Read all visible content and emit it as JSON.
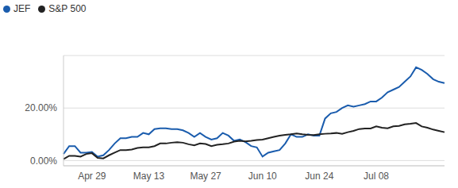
{
  "chart_data": {
    "type": "line",
    "categories": [
      null,
      null,
      null,
      null,
      null,
      "Apr 29",
      null,
      null,
      null,
      null,
      null,
      null,
      null,
      null,
      null,
      "May 13",
      null,
      null,
      null,
      null,
      null,
      null,
      null,
      null,
      null,
      "May 27",
      null,
      null,
      null,
      null,
      null,
      null,
      null,
      null,
      null,
      "Jun 10",
      null,
      null,
      null,
      null,
      null,
      null,
      null,
      null,
      null,
      "Jun 24",
      null,
      null,
      null,
      null,
      null,
      null,
      null,
      null,
      null,
      "Jul 08",
      null,
      null,
      null,
      null,
      null,
      null,
      null,
      null,
      null,
      null,
      null,
      null
    ],
    "series": [
      {
        "name": "JEF",
        "color": "#1a5cad",
        "values": [
          2.5,
          5.5,
          5.5,
          3,
          3,
          3.3,
          1.5,
          2,
          4,
          6.5,
          8.5,
          8.5,
          9,
          9,
          10.5,
          10,
          12,
          12.3,
          12.3,
          12,
          12,
          11.5,
          10.5,
          9,
          10.5,
          9,
          8,
          8.5,
          10.5,
          9.5,
          7.5,
          8,
          7,
          5.5,
          5,
          1.5,
          3,
          3.5,
          4,
          6.5,
          10,
          9,
          9,
          10,
          9.5,
          9.5,
          16,
          18,
          18.5,
          20,
          21,
          20.5,
          21,
          21.5,
          22.5,
          22.5,
          24,
          26,
          27,
          28,
          30,
          32,
          35.5,
          34.5,
          33,
          31,
          30,
          29.5
        ]
      },
      {
        "name": "S&P 500",
        "color": "#222222",
        "values": [
          0.5,
          1.8,
          1.8,
          1.5,
          2.5,
          2.8,
          1,
          0.8,
          2,
          3,
          4,
          4,
          4.2,
          4.8,
          5,
          5,
          5.5,
          6.5,
          6.5,
          6.8,
          7,
          6.8,
          6.2,
          5.8,
          6.5,
          6.3,
          5.5,
          6,
          6.2,
          6.5,
          7.2,
          7.5,
          7.3,
          7.5,
          7.8,
          8,
          8.5,
          9,
          9.5,
          9.8,
          10,
          10.3,
          10,
          9.8,
          9.7,
          10,
          10.2,
          10.3,
          10.5,
          10.2,
          10.8,
          11.3,
          12,
          12.2,
          12.2,
          13,
          12.5,
          12.3,
          13,
          13.2,
          13.8,
          14,
          14.3,
          13,
          12.5,
          11.8,
          11.3,
          10.8
        ]
      }
    ],
    "ylim": [
      -2,
      40
    ],
    "yticks": [
      {
        "value": 0,
        "label": "0.00%"
      },
      {
        "value": 20,
        "label": "20.00%"
      }
    ],
    "grid": true,
    "legend": "top left"
  }
}
